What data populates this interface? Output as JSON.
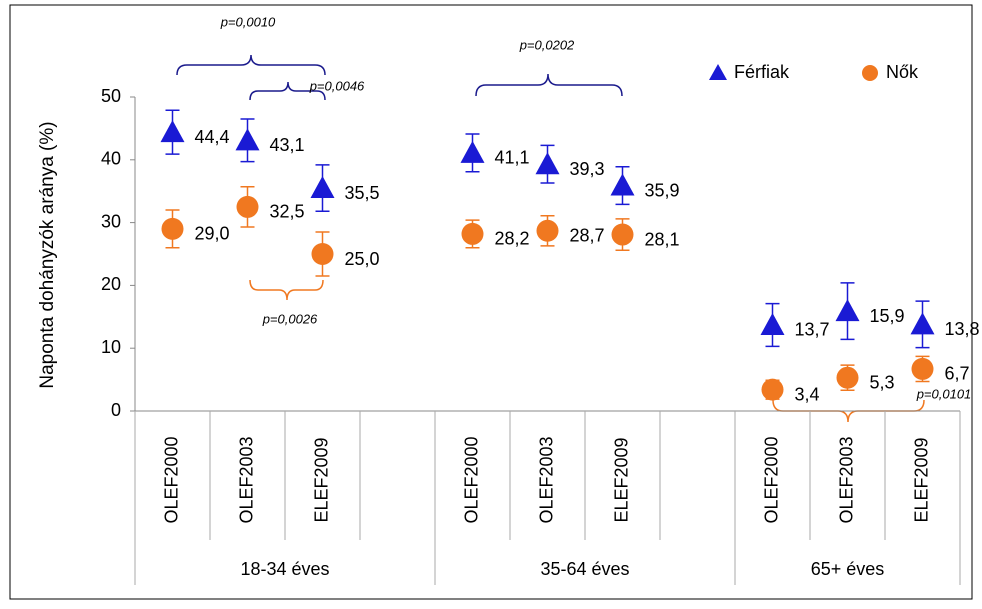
{
  "chart_data": {
    "type": "scatter",
    "y_label": "Naponta dohányzók aránya (%)",
    "categories": [
      "OLEF2000",
      "OLEF2003",
      "ELEF2009",
      null,
      "OLEF2000",
      "OLEF2003",
      "ELEF2009",
      null,
      "OLEF2000",
      "OLEF2003",
      "ELEF2009"
    ],
    "groups": [
      "18-34 éves",
      "35-64 éves",
      "65+ éves"
    ],
    "series": [
      {
        "name": "Férfiak",
        "color": "#1a1ad4",
        "marker": "triangle",
        "values": [
          44.4,
          43.1,
          35.5,
          null,
          41.1,
          39.3,
          35.9,
          null,
          13.7,
          15.9,
          13.8
        ],
        "value_labels": [
          "44,4",
          "43,1",
          "35,5",
          null,
          "41,1",
          "39,3",
          "35,9",
          null,
          "13,7",
          "15,9",
          "13,8"
        ],
        "errors": [
          3.5,
          3.4,
          3.7,
          null,
          3.0,
          3.0,
          3.0,
          null,
          3.4,
          4.5,
          3.7
        ]
      },
      {
        "name": "Nők",
        "color": "#f07820",
        "marker": "circle",
        "values": [
          29.0,
          32.5,
          25.0,
          null,
          28.2,
          28.7,
          28.1,
          null,
          3.4,
          5.3,
          6.7
        ],
        "value_labels": [
          "29,0",
          "32,5",
          "25,0",
          null,
          "28,2",
          "28,7",
          "28,1",
          null,
          "3,4",
          "5,3",
          "6,7"
        ],
        "errors": [
          3.0,
          3.2,
          3.5,
          null,
          2.2,
          2.4,
          2.5,
          null,
          1.5,
          2.0,
          2.0
        ]
      }
    ],
    "annotations": [
      "p=0,0010",
      "p=0,0046",
      "p=0,0026",
      "p=0,0202",
      "p=0,0101"
    ],
    "ylim": [
      0,
      50
    ],
    "yticks": [
      0,
      10,
      20,
      30,
      40,
      50
    ],
    "grid": false,
    "legend": "top-right"
  }
}
